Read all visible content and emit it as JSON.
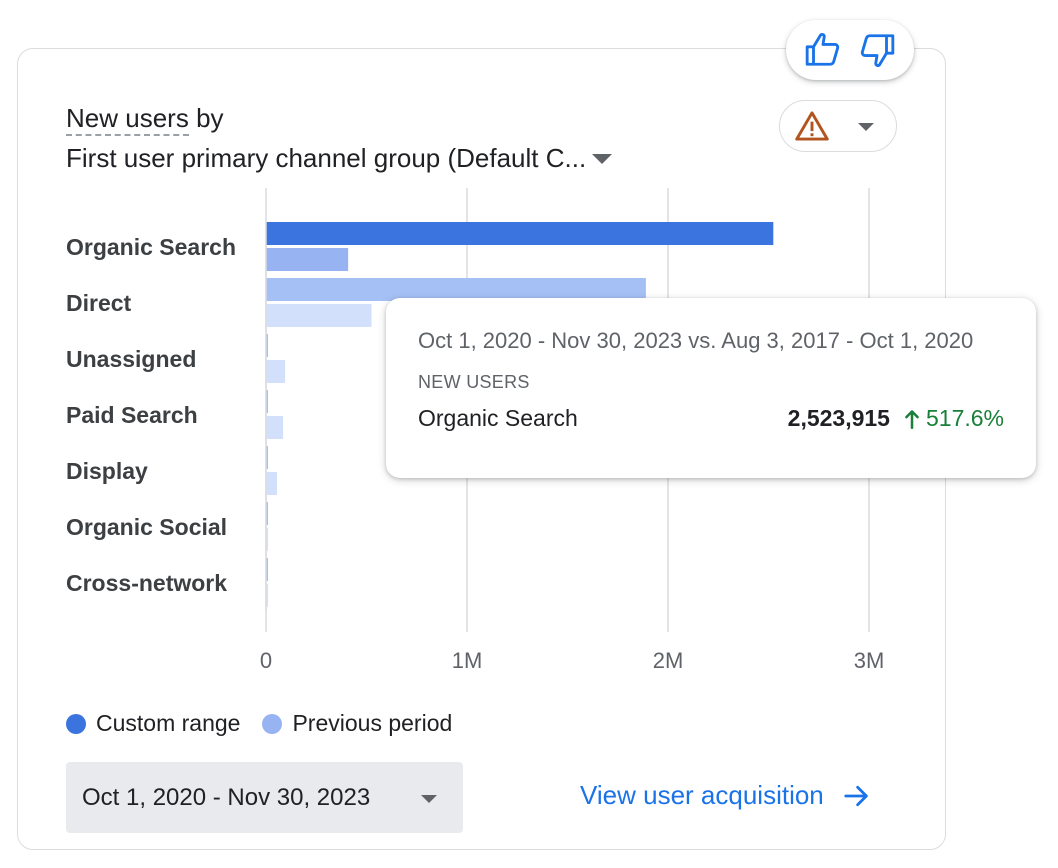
{
  "title": {
    "metric": "New users",
    "by": "by",
    "dimension": "First user primary channel group (Default C..."
  },
  "icons": {
    "like": "thumbs-up-icon",
    "dislike": "thumbs-down-icon",
    "warning": "warning-triangle-icon",
    "arrow": "arrow-right-icon"
  },
  "colors": {
    "custom_range": "#3b74df",
    "previous_period": "#97b3f2",
    "previous_period_faded": "#d2e0fb",
    "custom_range_faded": "#a5c0f5",
    "warning": "#b3541e",
    "link": "#1a73e8",
    "positive": "#188038"
  },
  "chart_data": {
    "type": "bar",
    "orientation": "horizontal",
    "categories": [
      "Organic Search",
      "Direct",
      "Unassigned",
      "Paid Search",
      "Display",
      "Organic Social",
      "Cross-network"
    ],
    "series": [
      {
        "name": "Custom range",
        "values": [
          2523915,
          1890000,
          4000,
          3000,
          2000,
          2000,
          1500
        ]
      },
      {
        "name": "Previous period",
        "values": [
          408700,
          525000,
          95000,
          85000,
          55000,
          6000,
          4000
        ]
      }
    ],
    "x_ticks": [
      "0",
      "1M",
      "2M",
      "3M"
    ],
    "x_tick_values": [
      0,
      1000000,
      2000000,
      3000000
    ],
    "xlim": [
      0,
      3000000
    ],
    "grid": true,
    "legend_position": "bottom-left",
    "highlighted_category": "Organic Search"
  },
  "legend": [
    {
      "label": "Custom range"
    },
    {
      "label": "Previous period"
    }
  ],
  "tooltip": {
    "range": "Oct 1, 2020 - Nov 30, 2023 vs. Aug 3, 2017 - Oct 1, 2020",
    "metric": "NEW USERS",
    "category": "Organic Search",
    "value": "2,523,915",
    "change": "517.6%"
  },
  "date_select": {
    "value": "Oct 1, 2020 - Nov 30, 2023"
  },
  "link": {
    "label": "View user acquisition"
  }
}
